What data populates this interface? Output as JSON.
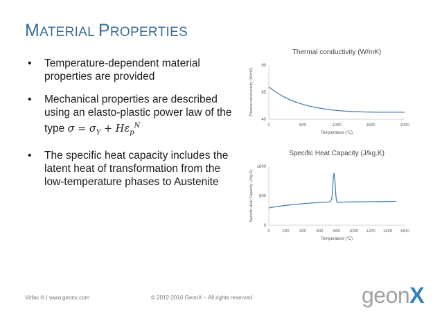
{
  "slide": {
    "title_first_cap": "M",
    "title_rest_1": "ATERIAL ",
    "title_second_cap": "P",
    "title_rest_2": "ROPERTIES",
    "bullets": [
      "Temperature-dependent material properties are provided",
      "Mechanical properties are described using an elasto-plastic power law of the type",
      "The specific heat capacity includes the latent heat of transformation from the low-temperature phases to Austenite"
    ],
    "formula": "σ = σY + HεpN"
  },
  "footer": {
    "left": "Virfac ® | www.geonx.com",
    "center": "© 2012-2016 GeonX – All rights reserved",
    "logo_text": "geon",
    "logo_mark": "X"
  },
  "colors": {
    "title": "#3a6c94",
    "line": "#4a7fb0",
    "axis": "#d0d0d0"
  },
  "chart_data": [
    {
      "type": "line",
      "title": "Thermal conductivity (W/mK)",
      "xlabel": "Temperature (°C)",
      "ylabel": "Thermal conductivity (W/mK)",
      "xlim": [
        0,
        2000
      ],
      "ylim": [
        40,
        90
      ],
      "xticks": [
        "0",
        "500",
        "1000",
        "1500",
        "2000"
      ],
      "yticks": [
        "40",
        "65",
        "90"
      ],
      "x": [
        0,
        50,
        100,
        200,
        300,
        400,
        500,
        600,
        700,
        800,
        900,
        1000,
        1100,
        1200,
        1300,
        1400,
        1500,
        1600,
        1700,
        1800,
        1900,
        2000
      ],
      "y": [
        70,
        67.5,
        65.3,
        61.5,
        58.3,
        55.8,
        53.8,
        52.1,
        50.8,
        49.7,
        48.8,
        48.1,
        47.6,
        47.2,
        46.9,
        46.7,
        46.6,
        46.5,
        46.5,
        46.5,
        46.5,
        46.5
      ]
    },
    {
      "type": "line",
      "title": "Specific Heat Capacity (J/kg.K)",
      "xlabel": "Temperature (°C)",
      "ylabel": "Specific Heat Capacity (J/kg.K)",
      "xlim": [
        0,
        1600
      ],
      "ylim": [
        0,
        1600
      ],
      "xticks": [
        "0",
        "200",
        "400",
        "600",
        "800",
        "1000",
        "1200",
        "1400",
        "1600"
      ],
      "yticks": [
        "0",
        "800",
        "1600"
      ],
      "x": [
        0,
        100,
        200,
        300,
        400,
        500,
        600,
        700,
        720,
        740,
        750,
        760,
        770,
        780,
        790,
        800,
        820,
        900,
        1000,
        1200,
        1400,
        1500
      ],
      "y": [
        470,
        510,
        540,
        565,
        585,
        605,
        620,
        630,
        640,
        700,
        900,
        1300,
        1420,
        1200,
        800,
        640,
        620,
        630,
        635,
        640,
        645,
        650
      ]
    }
  ]
}
